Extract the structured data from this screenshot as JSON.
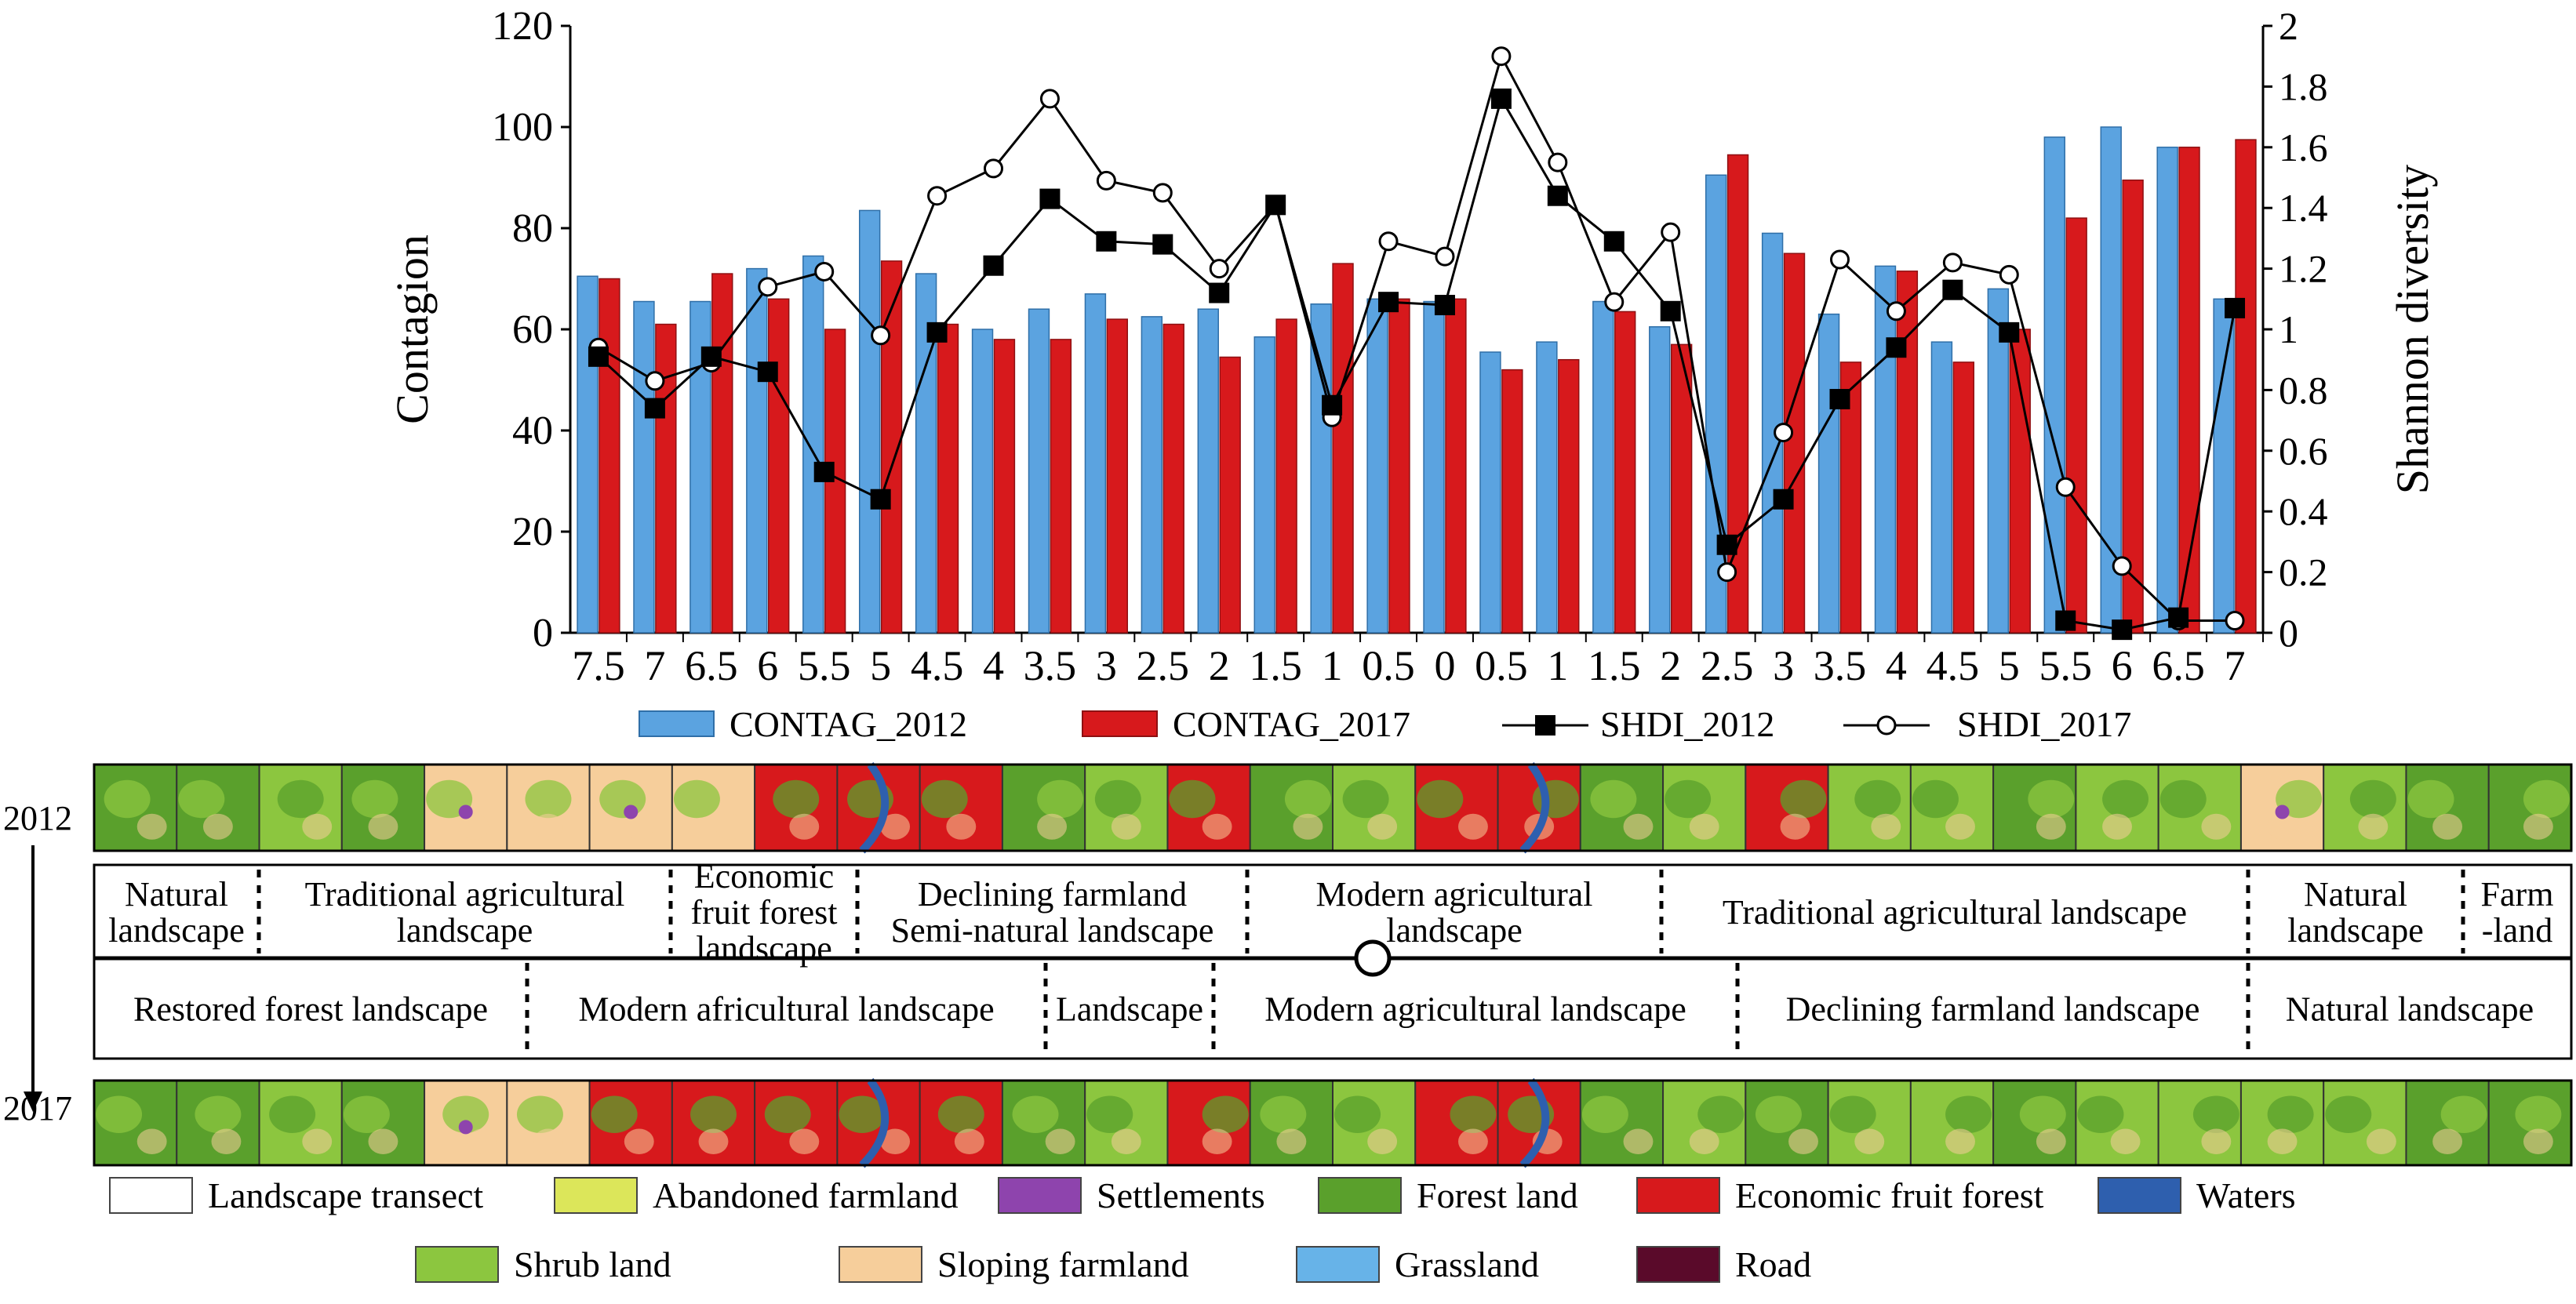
{
  "colors": {
    "contag_2012": "#5BA3E0",
    "contag_2017": "#D7191C",
    "forest": "#5AA02C",
    "shrub": "#8CC63F",
    "sloping": "#F6CE9B",
    "abandoned": "#DCE65A",
    "settlements": "#8E44AD",
    "economic": "#D7191C",
    "waters": "#2E5FAE",
    "grassland": "#67B3E8",
    "road": "#5A0A2A"
  },
  "chart_data": {
    "type": "bar",
    "ylabel": "Contagion",
    "y2label": "Shannon diversity",
    "ylim": [
      0,
      120
    ],
    "yticks": [
      "0",
      "20",
      "40",
      "60",
      "80",
      "100",
      "120"
    ],
    "y2lim": [
      0,
      2
    ],
    "y2ticks": [
      "0",
      "0.2",
      "0.4",
      "0.6",
      "0.8",
      "1",
      "1.2",
      "1.4",
      "1.6",
      "1.8",
      "2"
    ],
    "categories": [
      "7.5",
      "7",
      "6.5",
      "6",
      "5.5",
      "5",
      "4.5",
      "4",
      "3.5",
      "3",
      "2.5",
      "2",
      "1.5",
      "1",
      "0.5",
      "0",
      "0.5",
      "1",
      "1.5",
      "2",
      "2.5",
      "3",
      "3.5",
      "4",
      "4.5",
      "5",
      "5.5",
      "6",
      "6.5",
      "7"
    ],
    "series": [
      {
        "name": "CONTAG_2012",
        "kind": "bar",
        "values": [
          70.5,
          65.5,
          65.5,
          72,
          74.5,
          83.5,
          71,
          60,
          64,
          67,
          62.5,
          64,
          58.5,
          65,
          66,
          65.5,
          55.5,
          57.5,
          65.5,
          60.5,
          90.5,
          79,
          63,
          72.5,
          57.5,
          68,
          98,
          100,
          96,
          66
        ]
      },
      {
        "name": "CONTAG_2017",
        "kind": "bar",
        "values": [
          70,
          61,
          71,
          66,
          60,
          73.5,
          61,
          58,
          58,
          62,
          61,
          54.5,
          62,
          73,
          66,
          66,
          52,
          54,
          63.5,
          57,
          94.5,
          75,
          53.5,
          71.5,
          53.5,
          60,
          82,
          89.5,
          96,
          97.5
        ]
      },
      {
        "name": "SHDI_2012",
        "kind": "line",
        "marker": "square",
        "values": [
          0.91,
          0.74,
          0.91,
          0.86,
          0.53,
          0.44,
          0.99,
          1.21,
          1.43,
          1.29,
          1.28,
          1.12,
          1.41,
          0.75,
          1.09,
          1.08,
          1.76,
          1.44,
          1.29,
          1.06,
          0.29,
          0.44,
          0.77,
          0.94,
          1.13,
          0.99,
          0.04,
          0.01,
          0.05,
          1.07
        ]
      },
      {
        "name": "SHDI_2017",
        "kind": "line",
        "marker": "circle",
        "values": [
          0.94,
          0.83,
          0.89,
          1.14,
          1.19,
          0.98,
          1.44,
          1.53,
          1.76,
          1.49,
          1.45,
          1.2,
          1.41,
          0.71,
          1.29,
          1.24,
          1.9,
          1.55,
          1.09,
          1.32,
          0.2,
          0.66,
          1.23,
          1.06,
          1.22,
          1.18,
          0.48,
          0.22,
          0.04,
          0.04
        ]
      }
    ]
  },
  "legend": [
    "CONTAG_2012",
    "CONTAG_2017",
    "SHDI_2012",
    "SHDI_2017"
  ],
  "strips": {
    "label_2012": "2012",
    "label_2017": "2017",
    "tiles_2012": [
      "F",
      "F",
      "S",
      "F",
      "P",
      "P",
      "P",
      "P",
      "E",
      "E",
      "E",
      "F",
      "S",
      "E",
      "F",
      "S",
      "E",
      "E",
      "F",
      "S",
      "E",
      "S",
      "S",
      "F",
      "S",
      "S",
      "P",
      "S",
      "F",
      "F"
    ],
    "tiles_2017": [
      "F",
      "F",
      "S",
      "F",
      "P",
      "P",
      "E",
      "E",
      "E",
      "E",
      "E",
      "F",
      "S",
      "E",
      "F",
      "S",
      "E",
      "E",
      "F",
      "S",
      "F",
      "S",
      "S",
      "F",
      "S",
      "S",
      "S",
      "S",
      "F",
      "F"
    ]
  },
  "zones_2012": [
    {
      "lines": [
        "Natural",
        "landscape"
      ]
    },
    {
      "lines": [
        "Traditional agricultural",
        "landscape"
      ]
    },
    {
      "lines": [
        "Economic",
        "fruit forest",
        "landscape"
      ]
    },
    {
      "lines": [
        "Declining farmland",
        "Semi-natural landscape"
      ]
    },
    {
      "lines": [
        "Modern agricultural",
        "landscape"
      ]
    },
    {
      "lines": [
        "Traditional agricultural landscape"
      ]
    },
    {
      "lines": [
        "Natural",
        "landscape"
      ]
    },
    {
      "lines": [
        "Farm",
        "-land"
      ]
    }
  ],
  "zones_2017": [
    {
      "lines": [
        "Restored forest landscape"
      ]
    },
    {
      "lines": [
        "Modern africultural landscape"
      ]
    },
    {
      "lines": [
        "Landscape"
      ]
    },
    {
      "lines": [
        "Modern agricultural landscape"
      ]
    },
    {
      "lines": [
        "Declining farmland landscape"
      ]
    },
    {
      "lines": [
        "Natural landscape"
      ]
    }
  ],
  "land_legend": [
    {
      "label": "Landscape transect",
      "key": "transect"
    },
    {
      "label": "Abandoned farmland",
      "key": "abandoned"
    },
    {
      "label": "Settlements",
      "key": "settlements"
    },
    {
      "label": "Forest land",
      "key": "forest"
    },
    {
      "label": "Economic fruit forest",
      "key": "economic"
    },
    {
      "label": "Waters",
      "key": "waters"
    },
    {
      "label": "Shrub land",
      "key": "shrub"
    },
    {
      "label": "Sloping farmland",
      "key": "sloping"
    },
    {
      "label": "Grassland",
      "key": "grassland"
    },
    {
      "label": "Road",
      "key": "road"
    }
  ]
}
